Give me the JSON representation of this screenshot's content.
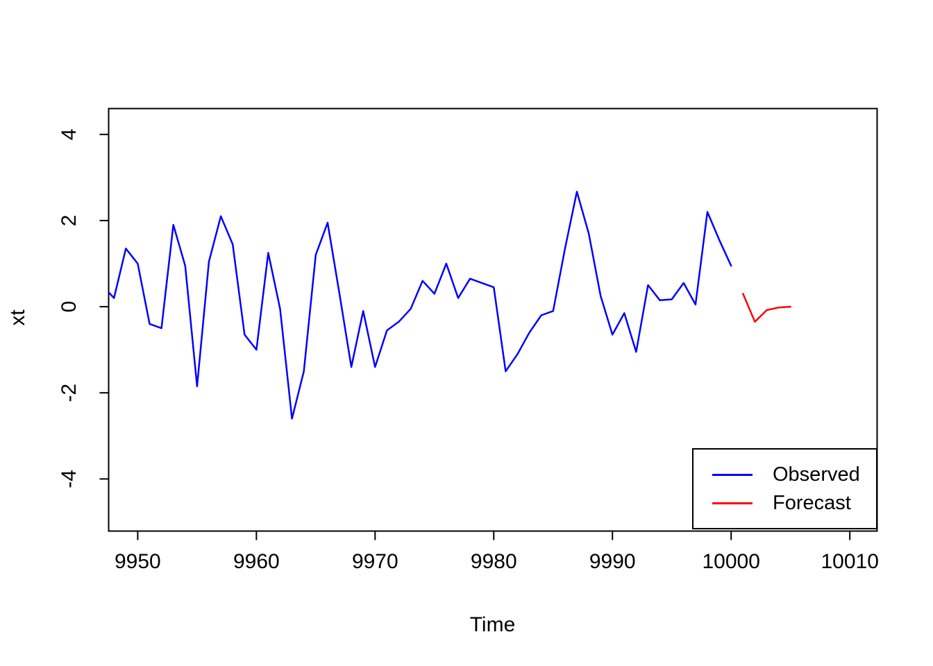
{
  "chart_data": {
    "type": "line",
    "title": "",
    "xlabel": "Time",
    "ylabel": "xt",
    "grid": false,
    "xlim": [
      9947.55,
      10012.3
    ],
    "ylim": [
      -5.21,
      4.6
    ],
    "x_ticks": [
      9950,
      9960,
      9970,
      9980,
      9990,
      10000,
      10010
    ],
    "y_ticks": [
      -4,
      -2,
      0,
      2,
      4
    ],
    "axis_color": "#000000",
    "background_color": "#ffffff",
    "legend": {
      "position": "bottom-right",
      "entries": [
        {
          "label": "Observed",
          "color": "#0000ff"
        },
        {
          "label": "Forecast",
          "color": "#ff0000"
        }
      ]
    },
    "series": [
      {
        "name": "Observed",
        "color": "#0000ff",
        "x": [
          9947,
          9948,
          9949,
          9950,
          9951,
          9952,
          9953,
          9954,
          9955,
          9956,
          9957,
          9958,
          9959,
          9960,
          9961,
          9962,
          9963,
          9964,
          9965,
          9966,
          9967,
          9968,
          9969,
          9970,
          9971,
          9972,
          9973,
          9974,
          9975,
          9976,
          9977,
          9978,
          9979,
          9980,
          9981,
          9982,
          9983,
          9984,
          9985,
          9986,
          9987,
          9988,
          9989,
          9990,
          9991,
          9992,
          9993,
          9994,
          9995,
          9996,
          9997,
          9998,
          9999,
          10000
        ],
        "y": [
          0.5,
          0.2,
          1.35,
          1.0,
          -0.4,
          -0.5,
          1.9,
          0.95,
          -1.85,
          1.05,
          2.1,
          1.45,
          -0.65,
          -1.0,
          1.25,
          -0.05,
          -2.6,
          -1.5,
          1.2,
          1.95,
          0.3,
          -1.4,
          -0.1,
          -1.4,
          -0.55,
          -0.35,
          -0.05,
          0.6,
          0.3,
          1.0,
          0.2,
          0.65,
          0.55,
          0.45,
          -1.5,
          -1.1,
          -0.6,
          -0.2,
          -0.1,
          1.35,
          2.67,
          1.7,
          0.25,
          -0.65,
          -0.15,
          -1.05,
          0.5,
          0.15,
          0.17,
          0.55,
          0.05,
          2.2,
          1.55,
          0.95
        ]
      },
      {
        "name": "Forecast",
        "color": "#ff0000",
        "x": [
          10001,
          10002,
          10003,
          10004,
          10005
        ],
        "y": [
          0.3,
          -0.35,
          -0.08,
          -0.02,
          0.0
        ]
      }
    ]
  }
}
